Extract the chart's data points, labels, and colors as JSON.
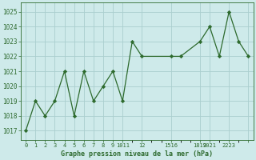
{
  "x": [
    0,
    1,
    2,
    3,
    4,
    5,
    6,
    7,
    8,
    9,
    10,
    11,
    12,
    15,
    16,
    18,
    19,
    20,
    21,
    22,
    23
  ],
  "y": [
    1017,
    1019,
    1018,
    1019,
    1021,
    1018,
    1021,
    1019,
    1020,
    1021,
    1019,
    1023,
    1022,
    1022,
    1022,
    1023,
    1024,
    1022,
    1025,
    1023,
    1022
  ],
  "line_color": "#2d6a2d",
  "marker_color": "#2d6a2d",
  "bg_color": "#ceeaea",
  "grid_color": "#aacece",
  "xlabel": "Graphe pression niveau de la mer (hPa)",
  "xlabel_color": "#2d6a2d",
  "ylabel_ticks": [
    1017,
    1018,
    1019,
    1020,
    1021,
    1022,
    1023,
    1024,
    1025
  ],
  "xlim": [
    -0.5,
    23.5
  ],
  "ylim": [
    1016.4,
    1025.6
  ],
  "fig_bg": "#ceeaea",
  "xtick_positions": [
    0,
    1,
    2,
    3,
    4,
    5,
    6,
    7,
    8,
    9,
    10,
    12,
    15,
    18,
    19,
    21,
    23
  ],
  "xtick_labels": [
    "0",
    "1",
    "2",
    "3",
    "4",
    "5",
    "6",
    "7",
    "8",
    "9",
    "1011",
    "12",
    "1516",
    "1819",
    "2021",
    "2223",
    ""
  ]
}
